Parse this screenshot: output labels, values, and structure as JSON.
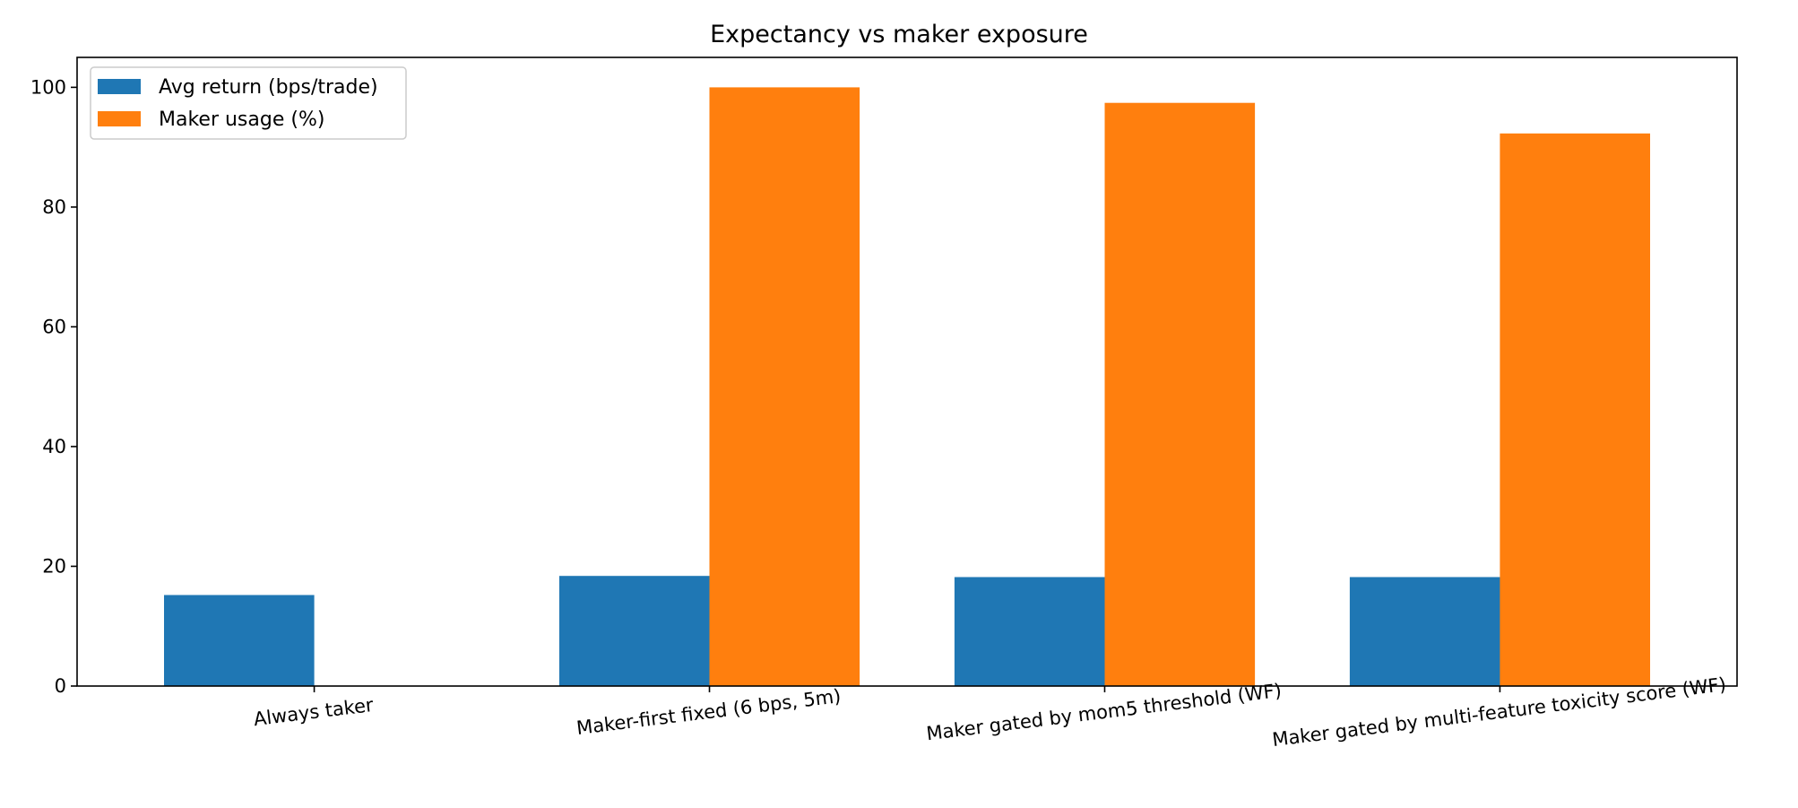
{
  "chart_data": {
    "type": "bar",
    "title": "Expectancy vs maker exposure",
    "xlabel": "",
    "ylabel": "",
    "ylim": [
      0,
      105
    ],
    "yticks": [
      0,
      20,
      40,
      60,
      80,
      100
    ],
    "categories": [
      "Always taker",
      "Maker-first fixed (6 bps, 5m)",
      "Maker gated by mom5 threshold (WF)",
      "Maker gated by multi-feature toxicity score (WF)"
    ],
    "series": [
      {
        "name": "Avg return (bps/trade)",
        "color": "#1f77b4",
        "values": [
          15.2,
          18.4,
          18.2,
          18.2
        ]
      },
      {
        "name": "Maker usage (%)",
        "color": "#ff7f0e",
        "values": [
          0,
          100,
          97.4,
          92.3
        ]
      }
    ],
    "legend": "top-left",
    "grid": false
  }
}
